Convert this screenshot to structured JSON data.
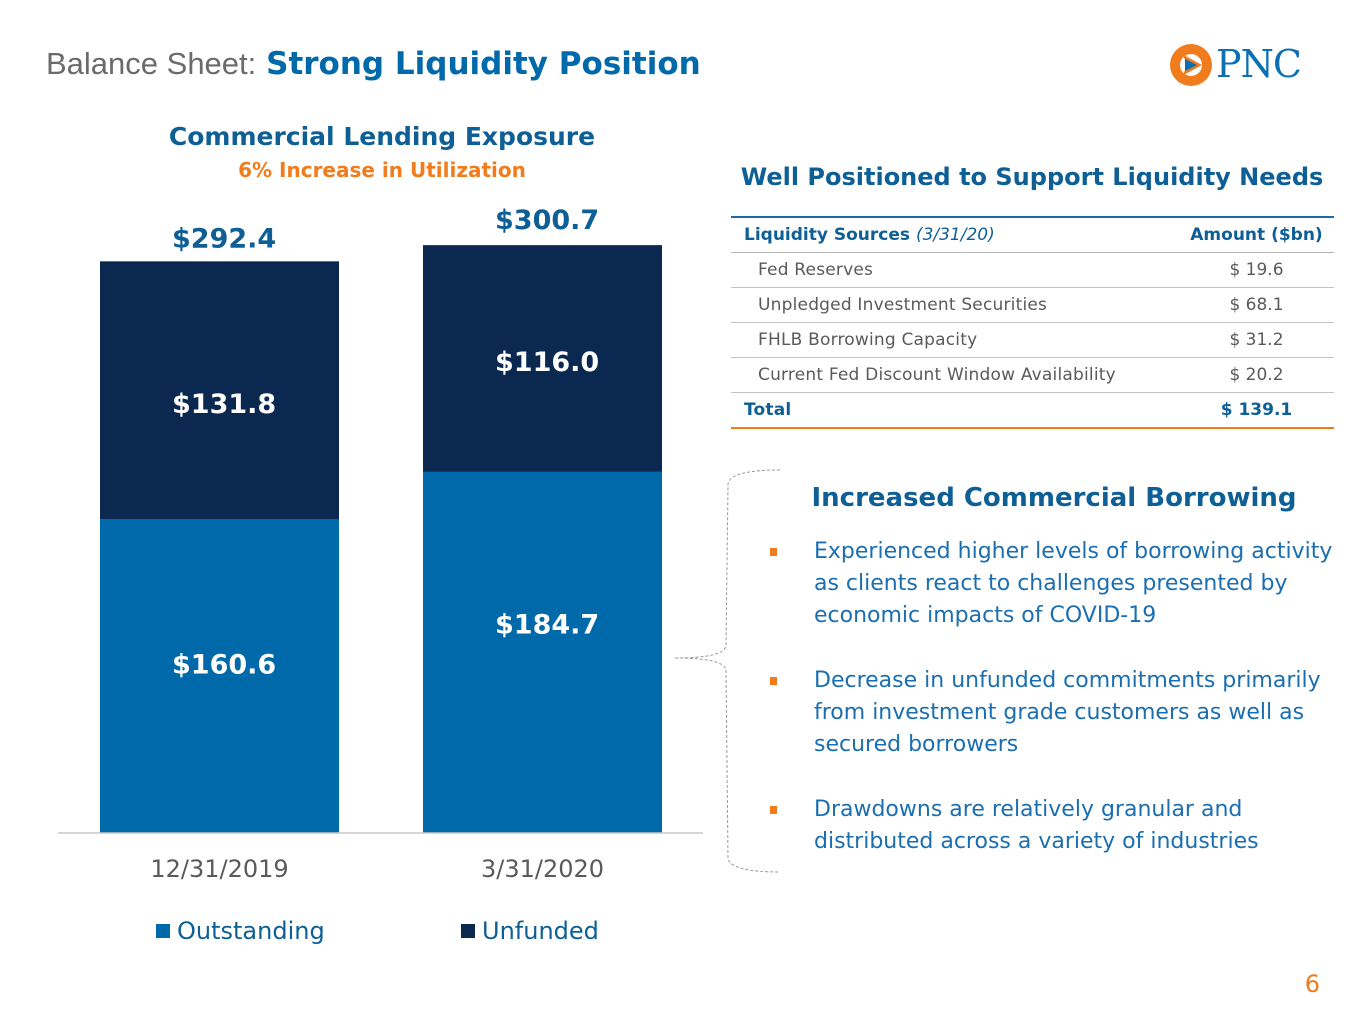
{
  "header": {
    "title_prefix": "Balance Sheet:",
    "title_main": "Strong Liquidity Position",
    "logo_text": "PNC"
  },
  "colors": {
    "outstanding": "#0069aa",
    "unfunded": "#0a2850",
    "accent_orange": "#f07c1e",
    "heading_blue": "#0d5f96"
  },
  "chart_data": {
    "type": "bar",
    "stacked": true,
    "title": "Commercial Lending Exposure",
    "subtitle": "6% Increase in Utilization",
    "categories": [
      "12/31/2019",
      "3/31/2020"
    ],
    "series": [
      {
        "name": "Outstanding",
        "values": [
          160.6,
          184.7
        ],
        "labels": [
          "$160.6",
          "$184.7"
        ]
      },
      {
        "name": "Unfunded",
        "values": [
          131.8,
          116.0
        ],
        "labels": [
          "$131.8",
          "$116.0"
        ]
      }
    ],
    "totals": [
      292.4,
      300.7
    ],
    "total_labels": [
      "$292.4",
      "$300.7"
    ],
    "ylim": [
      0,
      320
    ],
    "grid": false,
    "legend": "bottom"
  },
  "liquidity": {
    "title": "Well Positioned to Support Liquidity Needs",
    "header_label": "Liquidity Sources",
    "header_note": "(3/31/20)",
    "header_amount": "Amount ($bn)",
    "rows": [
      {
        "label": "Fed Reserves",
        "amount": "$ 19.6"
      },
      {
        "label": "Unpledged Investment Securities",
        "amount": "$ 68.1"
      },
      {
        "label": "FHLB Borrowing Capacity",
        "amount": "$ 31.2"
      },
      {
        "label": "Current Fed Discount Window Availability",
        "amount": "$ 20.2"
      }
    ],
    "total_label": "Total",
    "total_amount": "$ 139.1"
  },
  "borrowing": {
    "title": "Increased Commercial Borrowing",
    "bullets": [
      "Experienced higher levels of borrowing activity as clients react to challenges presented by economic impacts of COVID-19",
      "Decrease in unfunded commitments primarily from investment grade customers as well as secured borrowers",
      "Drawdowns are relatively granular and distributed across a variety of industries"
    ]
  },
  "page_number": "6"
}
